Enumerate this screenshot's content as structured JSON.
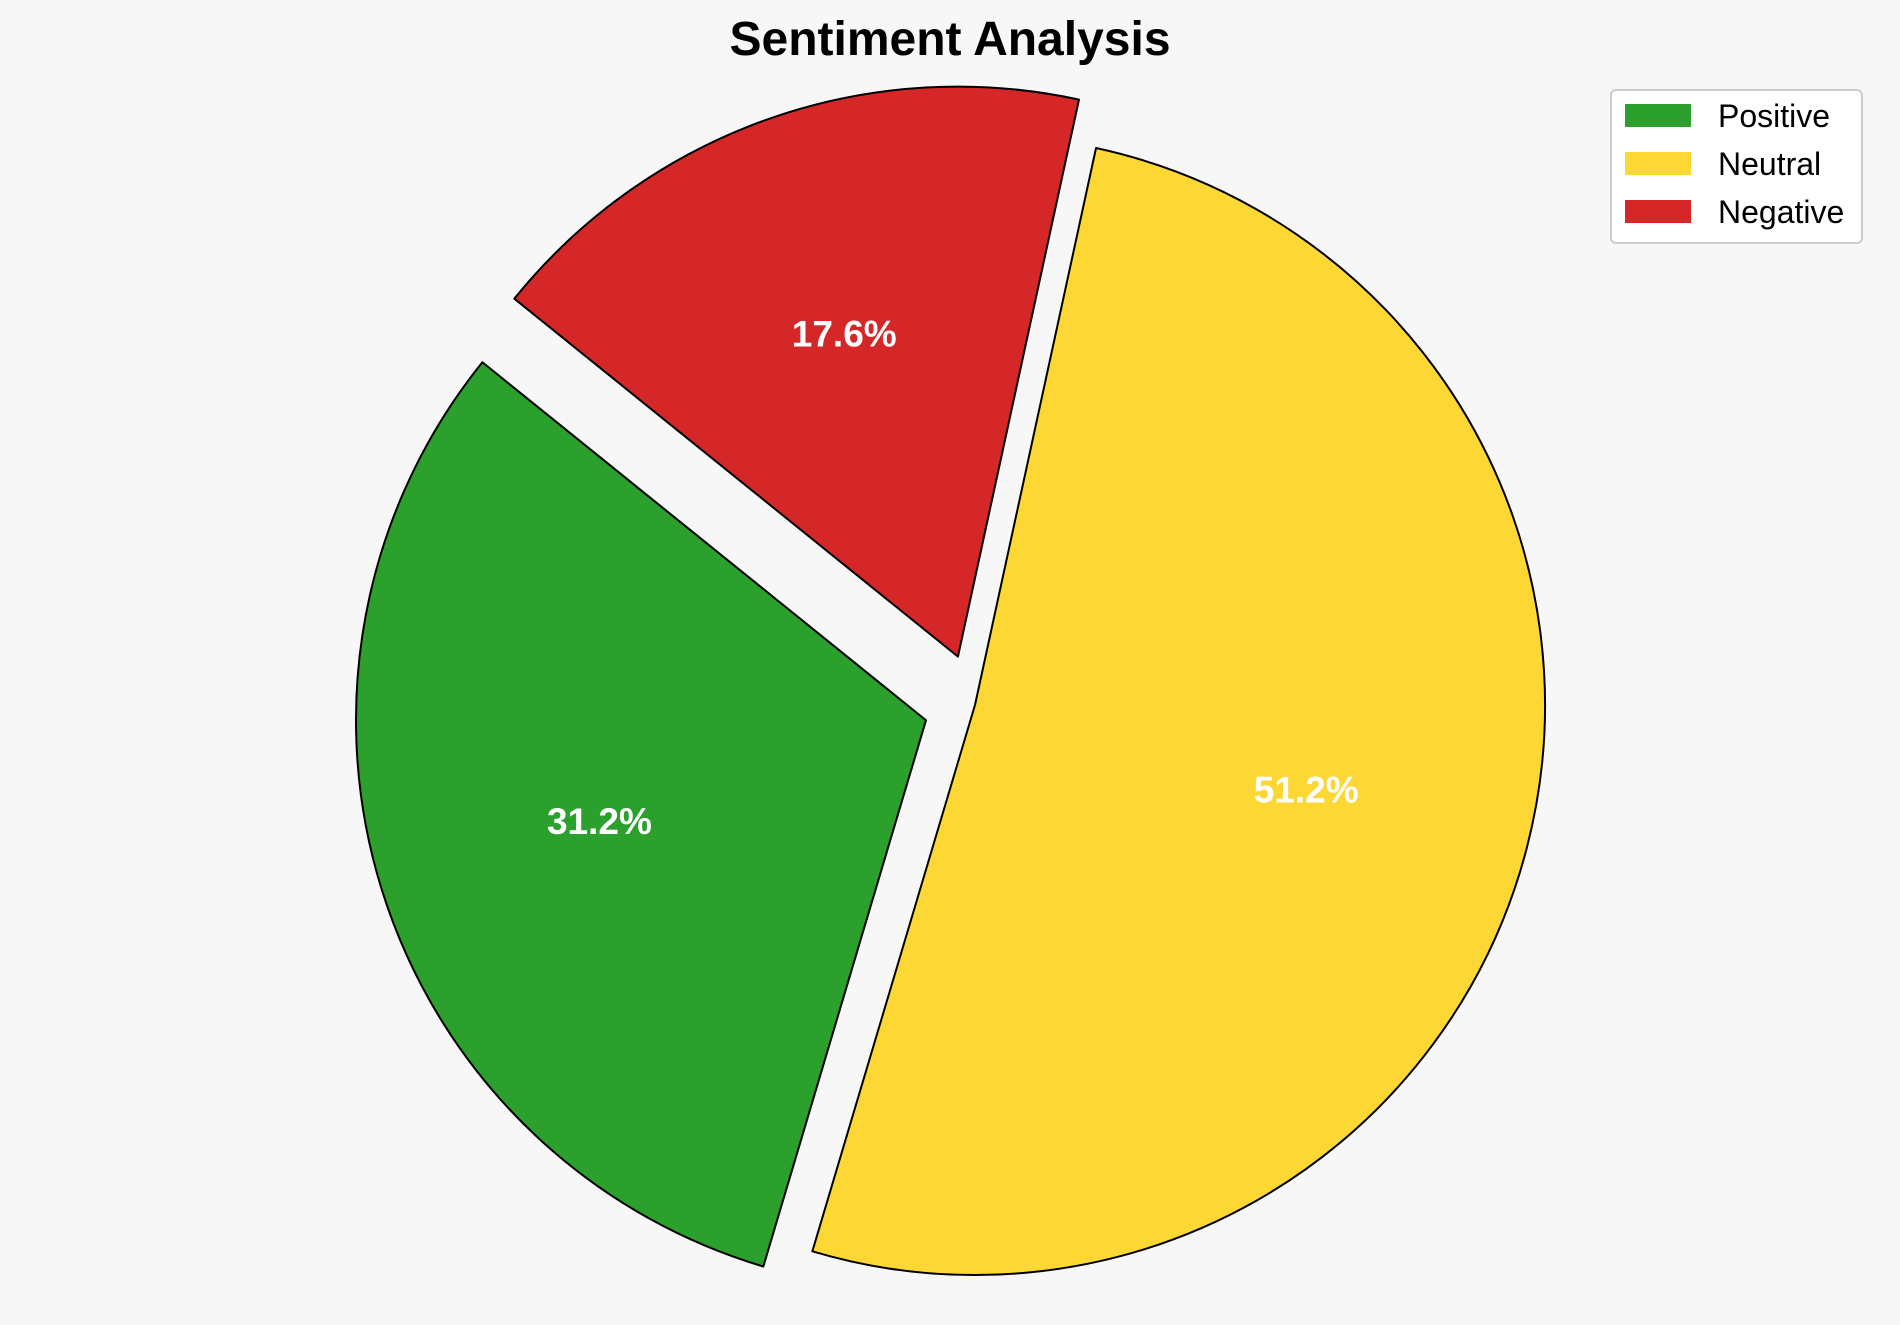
{
  "chart_data": {
    "type": "pie",
    "title": "Sentiment Analysis",
    "categories": [
      "Positive",
      "Neutral",
      "Negative"
    ],
    "values": [
      31.2,
      51.2,
      17.6
    ],
    "labels": [
      "31.2%",
      "51.2%",
      "17.6%"
    ],
    "colors": [
      "#2ca02c",
      "#fdd835",
      "#d62728"
    ],
    "exploded": [
      true,
      false,
      true
    ],
    "legend_position": "top-right"
  }
}
